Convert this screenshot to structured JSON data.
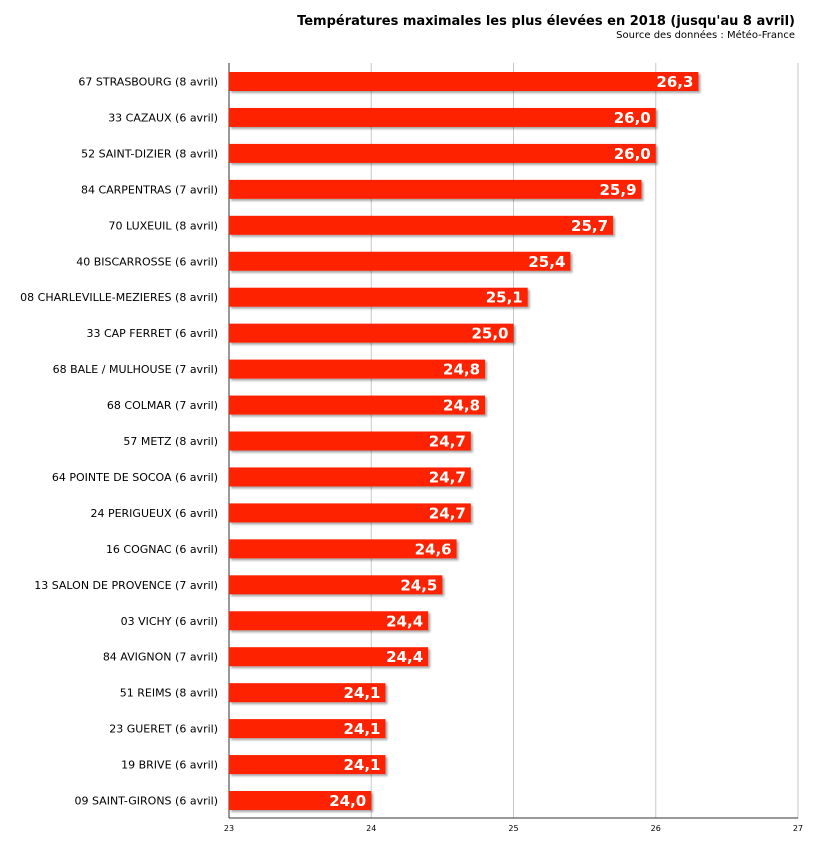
{
  "chart_data": {
    "type": "bar",
    "orientation": "horizontal",
    "title": "Températures maximales les plus élevées en 2018 (jusqu'au 8 avril)",
    "subtitle": "Source des données : Météo-France",
    "xlabel": "",
    "ylabel": "",
    "xlim": [
      23,
      27
    ],
    "xticks": [
      "23",
      "24",
      "25",
      "26",
      "27"
    ],
    "grid": true,
    "bar_color": "#ff2200",
    "categories": [
      "67 STRASBOURG (8 avril)",
      "33 CAZAUX (6 avril)",
      "52 SAINT-DIZIER (8 avril)",
      "84 CARPENTRAS (7 avril)",
      "70 LUXEUIL (8 avril)",
      "40 BISCARROSSE (6 avril)",
      "08 CHARLEVILLE-MEZIERES (8 avril)",
      "33 CAP FERRET (6 avril)",
      "68 BALE / MULHOUSE (7 avril)",
      "68 COLMAR (7 avril)",
      "57 METZ (8 avril)",
      "64 POINTE DE SOCOA (6 avril)",
      "24 PERIGUEUX (6 avril)",
      "16 COGNAC (6 avril)",
      "13 SALON DE PROVENCE (7 avril)",
      "03 VICHY (6 avril)",
      "84 AVIGNON (7 avril)",
      "51 REIMS (8 avril)",
      "23 GUERET (6 avril)",
      "19 BRIVE (6 avril)",
      "09 SAINT-GIRONS (6 avril)"
    ],
    "values": [
      26.3,
      26.0,
      26.0,
      25.9,
      25.7,
      25.4,
      25.1,
      25.0,
      24.8,
      24.8,
      24.7,
      24.7,
      24.7,
      24.6,
      24.5,
      24.4,
      24.4,
      24.1,
      24.1,
      24.1,
      24.0
    ],
    "value_labels": [
      "26,3",
      "26,0",
      "26,0",
      "25,9",
      "25,7",
      "25,4",
      "25,1",
      "25,0",
      "24,8",
      "24,8",
      "24,7",
      "24,7",
      "24,7",
      "24,6",
      "24,5",
      "24,4",
      "24,4",
      "24,1",
      "24,1",
      "24,1",
      "24,0"
    ]
  }
}
